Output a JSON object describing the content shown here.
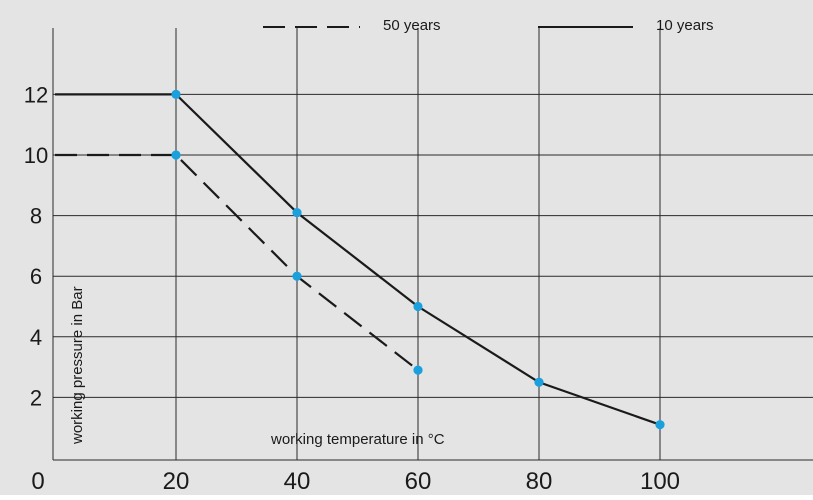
{
  "chart_data": {
    "type": "line",
    "title": "",
    "xlabel": "working temperature in °C",
    "ylabel": "working pressure in Bar",
    "x_ticks": [
      "0",
      "20",
      "40",
      "60",
      "80",
      "100"
    ],
    "y_ticks": [
      "2",
      "4",
      "6",
      "8",
      "10",
      "12"
    ],
    "xlim": [
      0,
      125
    ],
    "ylim": [
      -0.5,
      13.5
    ],
    "grid": true,
    "legend_position": "top",
    "series": [
      {
        "name": "50 years",
        "style": "dashed",
        "x": [
          0,
          20,
          40,
          60
        ],
        "y": [
          10,
          10,
          6,
          2.9
        ]
      },
      {
        "name": "10 years",
        "style": "solid",
        "x": [
          0,
          20,
          40,
          60,
          80,
          100
        ],
        "y": [
          12,
          12,
          8.1,
          5,
          2.5,
          1.1
        ]
      }
    ]
  },
  "colors": {
    "background": "#e4e4e4",
    "line": "#1a1a1a",
    "grid": "#2a2a2a",
    "marker": "#1aa0dc"
  }
}
